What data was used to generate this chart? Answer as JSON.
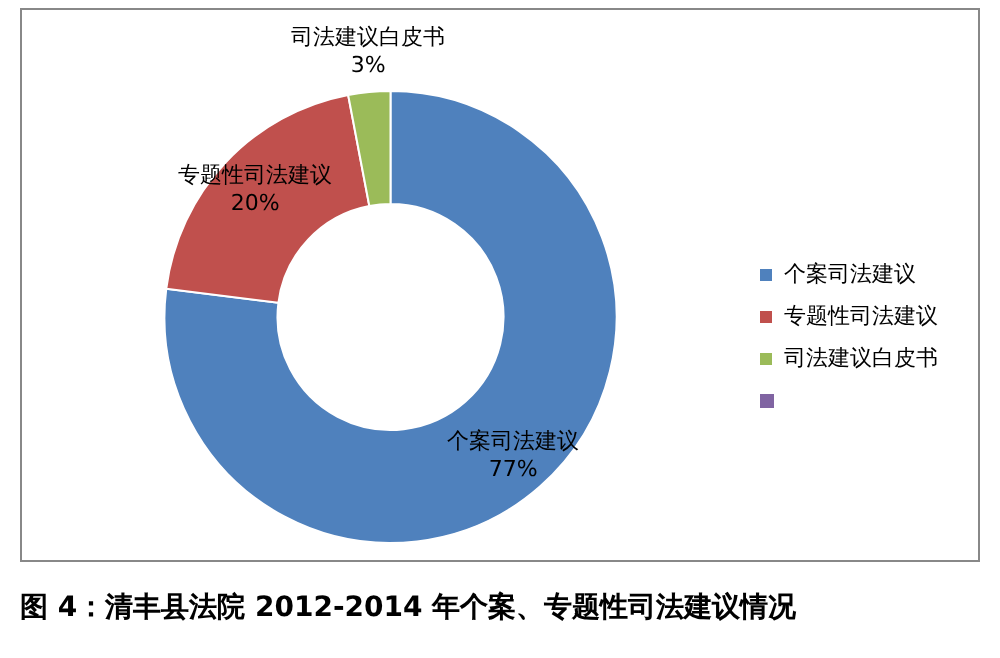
{
  "chart_data": {
    "type": "donut",
    "title": "图 4：清丰县法院 2012-2014 年个案、专题性司法建议情况",
    "categories": [
      "个案司法建议",
      "专题性司法建议",
      "司法建议白皮书"
    ],
    "values": [
      77,
      20,
      3
    ],
    "value_labels": [
      "77%",
      "20%",
      "3%"
    ],
    "colors": [
      "#4f81bd",
      "#c0504d",
      "#9bbb59"
    ],
    "legend": "right"
  }
}
